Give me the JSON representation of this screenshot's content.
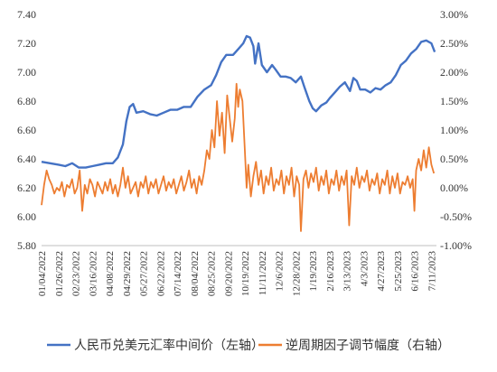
{
  "chart_data": {
    "type": "line",
    "title": "",
    "xlabel": "",
    "ylabel_left": "",
    "ylabel_right": "",
    "grid": false,
    "legend_position": "bottom",
    "left_axis": {
      "ylim": [
        5.8,
        7.4
      ],
      "ticks": [
        7.4,
        7.2,
        7.0,
        6.8,
        6.6,
        6.4,
        6.2,
        6.0,
        5.8
      ],
      "tick_labels": [
        "7.40",
        "7.20",
        "7.00",
        "6.80",
        "6.60",
        "6.40",
        "6.20",
        "6.00",
        "5.80"
      ]
    },
    "right_axis": {
      "ylim": [
        -1.0,
        3.0
      ],
      "ticks": [
        3.0,
        2.5,
        2.0,
        1.5,
        1.0,
        0.5,
        0.0,
        -0.5,
        -1.0
      ],
      "tick_labels": [
        "3.00%",
        "2.50%",
        "2.00%",
        "1.50%",
        "1.00%",
        "0.50%",
        "0.00%",
        "-0.50%",
        "-1.00%"
      ]
    },
    "x_tick_labels": [
      "01/04/2022",
      "01/26/2022",
      "02/23/2022",
      "03/16/2022",
      "04/08/2022",
      "04/29/2022",
      "05/27/2022",
      "06/22/2022",
      "07/14/2022",
      "08/04/2022",
      "08/25/2022",
      "09/20/2022",
      "10/19/2022",
      "11/11/2022",
      "12/6/2022",
      "12/28/2022",
      "1/19/2023",
      "2/16/2023",
      "3/13/2023",
      "4/3/2023",
      "4/27/2023",
      "5/25/2023",
      "6/16/2023",
      "7/11/2023"
    ],
    "x_range": [
      0,
      23.3
    ],
    "series": [
      {
        "name": "人民币兑美元汇率中间价（左轴）",
        "axis": "left",
        "color": "#4472C4",
        "points": [
          [
            0,
            6.38
          ],
          [
            0.5,
            6.37
          ],
          [
            1,
            6.36
          ],
          [
            1.4,
            6.35
          ],
          [
            1.8,
            6.37
          ],
          [
            2.2,
            6.34
          ],
          [
            2.6,
            6.34
          ],
          [
            3,
            6.35
          ],
          [
            3.4,
            6.36
          ],
          [
            3.8,
            6.37
          ],
          [
            4.2,
            6.37
          ],
          [
            4.5,
            6.41
          ],
          [
            4.8,
            6.5
          ],
          [
            5.0,
            6.66
          ],
          [
            5.2,
            6.76
          ],
          [
            5.4,
            6.78
          ],
          [
            5.6,
            6.72
          ],
          [
            6,
            6.73
          ],
          [
            6.4,
            6.71
          ],
          [
            6.8,
            6.7
          ],
          [
            7.2,
            6.72
          ],
          [
            7.6,
            6.74
          ],
          [
            8,
            6.74
          ],
          [
            8.4,
            6.76
          ],
          [
            8.8,
            6.76
          ],
          [
            9.2,
            6.83
          ],
          [
            9.6,
            6.88
          ],
          [
            10,
            6.91
          ],
          [
            10.3,
            6.98
          ],
          [
            10.6,
            7.07
          ],
          [
            10.9,
            7.12
          ],
          [
            11.3,
            7.12
          ],
          [
            11.6,
            7.16
          ],
          [
            11.9,
            7.2
          ],
          [
            12.1,
            7.25
          ],
          [
            12.3,
            7.24
          ],
          [
            12.5,
            7.18
          ],
          [
            12.6,
            7.06
          ],
          [
            12.8,
            7.2
          ],
          [
            13.0,
            7.05
          ],
          [
            13.3,
            7.0
          ],
          [
            13.6,
            7.05
          ],
          [
            13.8,
            7.02
          ],
          [
            14.1,
            6.97
          ],
          [
            14.4,
            6.97
          ],
          [
            14.7,
            6.96
          ],
          [
            15.0,
            6.93
          ],
          [
            15.3,
            6.97
          ],
          [
            15.5,
            6.9
          ],
          [
            15.8,
            6.8
          ],
          [
            16.0,
            6.75
          ],
          [
            16.2,
            6.73
          ],
          [
            16.5,
            6.77
          ],
          [
            16.8,
            6.79
          ],
          [
            17.0,
            6.82
          ],
          [
            17.3,
            6.86
          ],
          [
            17.6,
            6.9
          ],
          [
            17.9,
            6.93
          ],
          [
            18.2,
            6.87
          ],
          [
            18.4,
            6.96
          ],
          [
            18.6,
            6.94
          ],
          [
            18.8,
            6.88
          ],
          [
            19.1,
            6.88
          ],
          [
            19.4,
            6.86
          ],
          [
            19.7,
            6.89
          ],
          [
            20,
            6.88
          ],
          [
            20.3,
            6.91
          ],
          [
            20.6,
            6.93
          ],
          [
            20.9,
            6.98
          ],
          [
            21.2,
            7.05
          ],
          [
            21.5,
            7.08
          ],
          [
            21.8,
            7.13
          ],
          [
            22.1,
            7.16
          ],
          [
            22.4,
            7.21
          ],
          [
            22.7,
            7.22
          ],
          [
            23.0,
            7.2
          ],
          [
            23.2,
            7.14
          ]
        ]
      },
      {
        "name": "逆周期因子调节幅度（右轴）",
        "axis": "right",
        "color": "#ED7D31",
        "points": [
          [
            0,
            -0.3
          ],
          [
            0.15,
            0.05
          ],
          [
            0.3,
            0.3
          ],
          [
            0.45,
            0.15
          ],
          [
            0.6,
            0.05
          ],
          [
            0.75,
            -0.1
          ],
          [
            0.9,
            0.0
          ],
          [
            1.05,
            -0.05
          ],
          [
            1.2,
            0.1
          ],
          [
            1.35,
            -0.15
          ],
          [
            1.5,
            0.05
          ],
          [
            1.65,
            0.0
          ],
          [
            1.8,
            0.15
          ],
          [
            1.95,
            -0.1
          ],
          [
            2.1,
            0.0
          ],
          [
            2.25,
            0.3
          ],
          [
            2.4,
            -0.4
          ],
          [
            2.55,
            0.05
          ],
          [
            2.7,
            -0.1
          ],
          [
            2.85,
            0.15
          ],
          [
            3.0,
            0.05
          ],
          [
            3.15,
            -0.15
          ],
          [
            3.3,
            0.1
          ],
          [
            3.45,
            0.0
          ],
          [
            3.6,
            -0.1
          ],
          [
            3.75,
            0.1
          ],
          [
            3.9,
            -0.05
          ],
          [
            4.05,
            0.15
          ],
          [
            4.2,
            -0.1
          ],
          [
            4.35,
            0.05
          ],
          [
            4.5,
            -0.15
          ],
          [
            4.65,
            0.05
          ],
          [
            4.8,
            0.35
          ],
          [
            4.95,
            0.0
          ],
          [
            5.1,
            0.2
          ],
          [
            5.25,
            -0.1
          ],
          [
            5.4,
            0.0
          ],
          [
            5.55,
            0.1
          ],
          [
            5.7,
            -0.15
          ],
          [
            5.85,
            0.1
          ],
          [
            6.0,
            0.0
          ],
          [
            6.15,
            0.2
          ],
          [
            6.3,
            -0.1
          ],
          [
            6.45,
            0.1
          ],
          [
            6.6,
            0.0
          ],
          [
            6.75,
            0.15
          ],
          [
            6.9,
            -0.1
          ],
          [
            7.05,
            0.05
          ],
          [
            7.2,
            0.2
          ],
          [
            7.35,
            -0.05
          ],
          [
            7.5,
            0.1
          ],
          [
            7.65,
            0.0
          ],
          [
            7.8,
            0.15
          ],
          [
            7.95,
            -0.1
          ],
          [
            8.1,
            0.05
          ],
          [
            8.25,
            0.2
          ],
          [
            8.4,
            -0.05
          ],
          [
            8.55,
            0.1
          ],
          [
            8.7,
            0.3
          ],
          [
            8.85,
            0.0
          ],
          [
            9.0,
            0.15
          ],
          [
            9.15,
            -0.1
          ],
          [
            9.3,
            0.2
          ],
          [
            9.45,
            0.05
          ],
          [
            9.6,
            0.3
          ],
          [
            9.75,
            0.65
          ],
          [
            9.9,
            0.5
          ],
          [
            10.05,
            1.0
          ],
          [
            10.2,
            0.7
          ],
          [
            10.35,
            1.5
          ],
          [
            10.5,
            0.9
          ],
          [
            10.65,
            1.3
          ],
          [
            10.8,
            0.6
          ],
          [
            10.95,
            1.6
          ],
          [
            11.1,
            1.2
          ],
          [
            11.25,
            0.8
          ],
          [
            11.4,
            1.2
          ],
          [
            11.5,
            1.8
          ],
          [
            11.6,
            1.4
          ],
          [
            11.7,
            1.7
          ],
          [
            11.85,
            1.5
          ],
          [
            12.0,
            0.6
          ],
          [
            12.1,
            0.0
          ],
          [
            12.2,
            0.4
          ],
          [
            12.35,
            -0.15
          ],
          [
            12.5,
            0.2
          ],
          [
            12.65,
            0.45
          ],
          [
            12.8,
            0.05
          ],
          [
            12.95,
            0.3
          ],
          [
            13.1,
            -0.1
          ],
          [
            13.25,
            0.2
          ],
          [
            13.4,
            0.05
          ],
          [
            13.55,
            0.35
          ],
          [
            13.7,
            -0.05
          ],
          [
            13.85,
            0.15
          ],
          [
            14.0,
            0.05
          ],
          [
            14.15,
            0.3
          ],
          [
            14.3,
            -0.1
          ],
          [
            14.45,
            0.2
          ],
          [
            14.6,
            0.05
          ],
          [
            14.75,
            0.35
          ],
          [
            14.9,
            -0.15
          ],
          [
            15.05,
            0.2
          ],
          [
            15.2,
            0.05
          ],
          [
            15.3,
            -0.75
          ],
          [
            15.45,
            0.15
          ],
          [
            15.6,
            0.3
          ],
          [
            15.75,
            0.0
          ],
          [
            15.9,
            0.25
          ],
          [
            16.05,
            0.1
          ],
          [
            16.2,
            0.35
          ],
          [
            16.35,
            -0.05
          ],
          [
            16.5,
            0.2
          ],
          [
            16.65,
            0.05
          ],
          [
            16.8,
            0.3
          ],
          [
            16.95,
            -0.1
          ],
          [
            17.1,
            0.15
          ],
          [
            17.25,
            0.05
          ],
          [
            17.4,
            0.3
          ],
          [
            17.55,
            -0.05
          ],
          [
            17.7,
            0.2
          ],
          [
            17.85,
            0.05
          ],
          [
            18.0,
            0.3
          ],
          [
            18.15,
            -0.65
          ],
          [
            18.3,
            0.2
          ],
          [
            18.45,
            0.05
          ],
          [
            18.6,
            0.35
          ],
          [
            18.75,
            0.0
          ],
          [
            18.9,
            0.2
          ],
          [
            19.05,
            0.1
          ],
          [
            19.2,
            0.3
          ],
          [
            19.35,
            -0.05
          ],
          [
            19.5,
            0.15
          ],
          [
            19.65,
            0.05
          ],
          [
            19.8,
            0.25
          ],
          [
            19.95,
            -0.1
          ],
          [
            20.1,
            0.15
          ],
          [
            20.25,
            0.05
          ],
          [
            20.4,
            0.3
          ],
          [
            20.55,
            -0.1
          ],
          [
            20.7,
            0.2
          ],
          [
            20.85,
            0.0
          ],
          [
            21.0,
            0.25
          ],
          [
            21.15,
            -0.1
          ],
          [
            21.3,
            0.1
          ],
          [
            21.45,
            0.05
          ],
          [
            21.6,
            0.2
          ],
          [
            21.75,
            0.0
          ],
          [
            21.9,
            0.15
          ],
          [
            22.0,
            -0.4
          ],
          [
            22.1,
            0.3
          ],
          [
            22.25,
            0.5
          ],
          [
            22.4,
            0.3
          ],
          [
            22.55,
            0.65
          ],
          [
            22.7,
            0.35
          ],
          [
            22.85,
            0.7
          ],
          [
            23.0,
            0.4
          ],
          [
            23.15,
            0.25
          ]
        ]
      }
    ]
  }
}
